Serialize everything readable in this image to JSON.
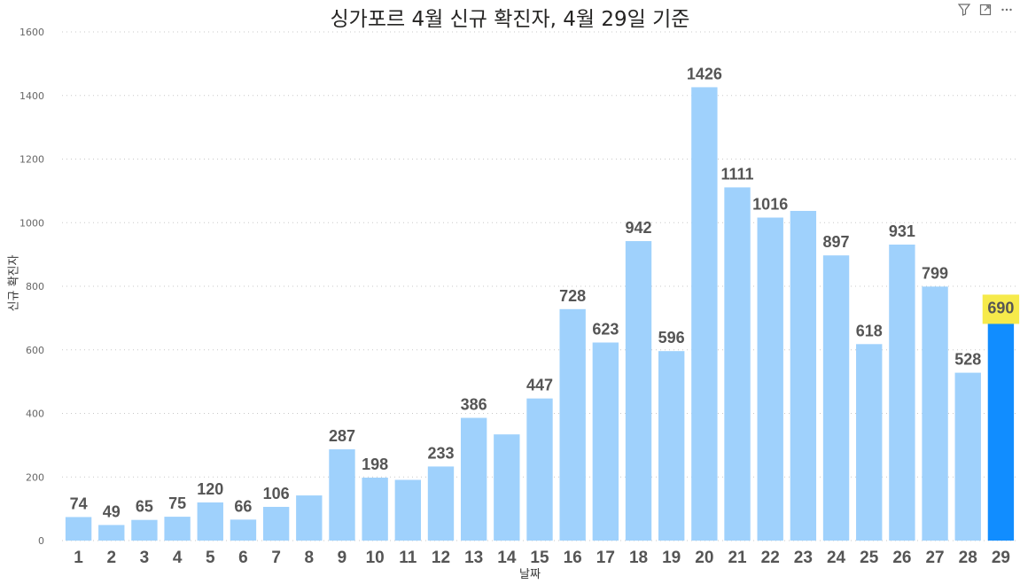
{
  "chart_data": {
    "type": "bar",
    "title": "싱가포르 4월 신규 확진자, 4월 29일 기준",
    "xlabel": "날짜",
    "ylabel": "신규 확진자",
    "ylim": [
      0,
      1600
    ],
    "yticks": [
      0,
      200,
      400,
      600,
      800,
      1000,
      1200,
      1400,
      1600
    ],
    "grid": true,
    "categories": [
      "1",
      "2",
      "3",
      "4",
      "5",
      "6",
      "7",
      "8",
      "9",
      "10",
      "11",
      "12",
      "13",
      "14",
      "15",
      "16",
      "17",
      "18",
      "19",
      "20",
      "21",
      "22",
      "23",
      "24",
      "25",
      "26",
      "27",
      "28",
      "29"
    ],
    "values": [
      74,
      49,
      65,
      75,
      120,
      66,
      106,
      142,
      287,
      198,
      191,
      233,
      386,
      334,
      447,
      728,
      623,
      942,
      596,
      1426,
      1111,
      1016,
      1037,
      897,
      618,
      931,
      799,
      528,
      690
    ],
    "data_labels": [
      "74",
      "49",
      "65",
      "75",
      "120",
      "66",
      "106",
      "",
      "287",
      "198",
      "",
      "233",
      "386",
      "",
      "447",
      "728",
      "623",
      "942",
      "596",
      "1426",
      "1111",
      "1016",
      "",
      "897",
      "618",
      "931",
      "799",
      "528",
      "690"
    ],
    "highlight_index": 28,
    "colors": {
      "bar": "#9fd1fc",
      "highlight_bar": "#118dff",
      "highlight_label_bg": "#f6ea4b",
      "label": "#555555",
      "grid": "#c8c8c8"
    }
  },
  "header_icons": [
    "filter-icon",
    "focus-mode-icon",
    "more-options-icon"
  ]
}
